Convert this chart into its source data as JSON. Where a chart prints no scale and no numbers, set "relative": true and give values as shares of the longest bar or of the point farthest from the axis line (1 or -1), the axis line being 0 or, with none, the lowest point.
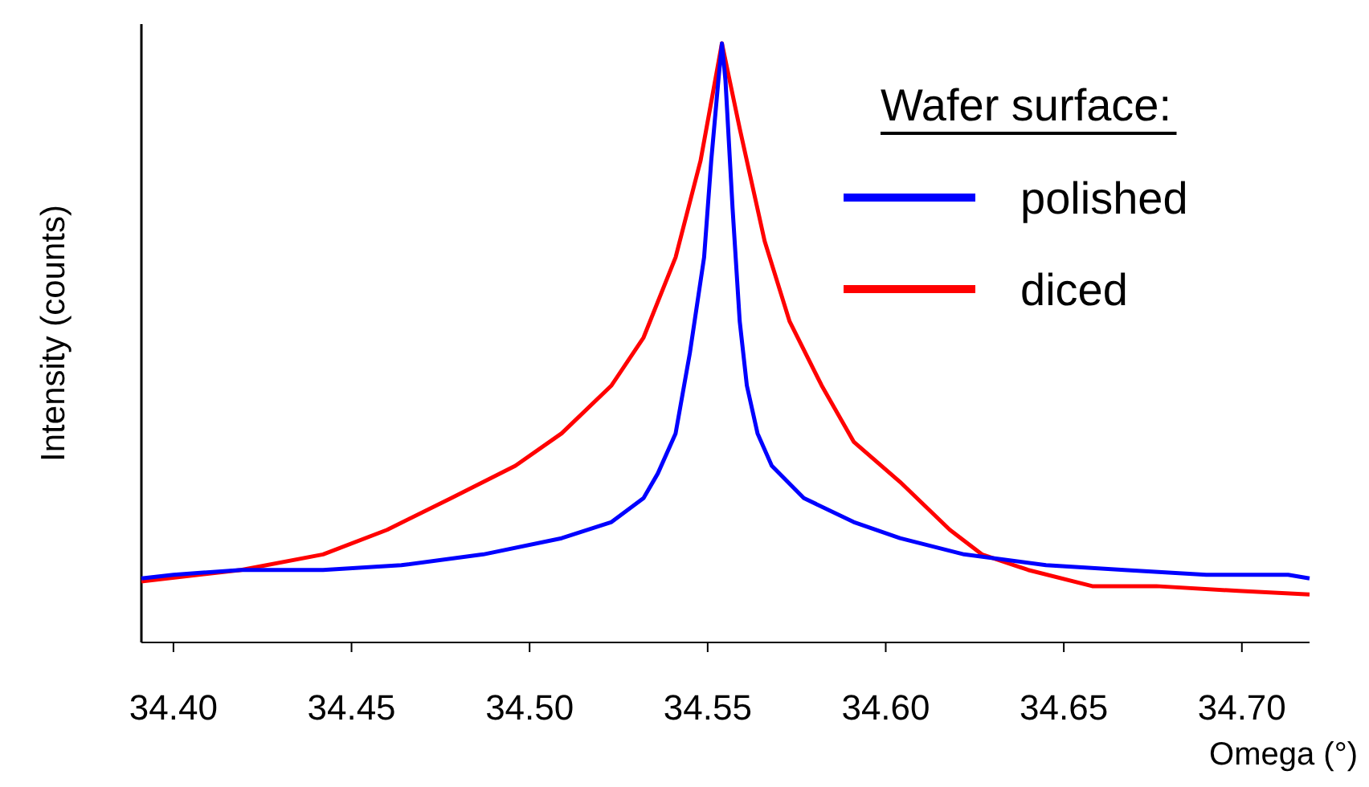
{
  "chart_data": {
    "type": "line",
    "relative": true,
    "xlabel": "Omega (°)",
    "ylabel": "Intensity (counts)",
    "legend_title": "Wafer surface:",
    "legend": "top right",
    "xlim": [
      34.391,
      34.719
    ],
    "xticks": [
      {
        "value": 34.4,
        "label": "34.40"
      },
      {
        "value": 34.45,
        "label": "34.45"
      },
      {
        "value": 34.5,
        "label": "34.50"
      },
      {
        "value": 34.55,
        "label": "34.55"
      },
      {
        "value": 34.6,
        "label": "34.60"
      },
      {
        "value": 34.65,
        "label": "34.65"
      },
      {
        "value": 34.7,
        "label": "34.70"
      }
    ],
    "series": [
      {
        "name": "polished",
        "color": "#0000ff",
        "x": [
          34.391,
          34.4,
          34.419,
          34.442,
          34.464,
          34.487,
          34.509,
          34.523,
          34.532,
          34.536,
          34.541,
          34.545,
          34.549,
          34.551,
          34.553,
          34.554,
          34.555,
          34.557,
          34.559,
          34.561,
          34.564,
          34.568,
          34.577,
          34.591,
          34.604,
          34.622,
          34.645,
          34.667,
          34.69,
          34.713,
          34.719
        ],
        "values": [
          0.107,
          0.113,
          0.121,
          0.121,
          0.129,
          0.147,
          0.174,
          0.201,
          0.241,
          0.282,
          0.349,
          0.483,
          0.643,
          0.804,
          0.938,
          1,
          0.938,
          0.724,
          0.536,
          0.429,
          0.349,
          0.295,
          0.241,
          0.201,
          0.174,
          0.147,
          0.129,
          0.121,
          0.113,
          0.113,
          0.107
        ]
      },
      {
        "name": "diced",
        "color": "#ff0000",
        "x": [
          34.391,
          34.419,
          34.442,
          34.46,
          34.478,
          34.496,
          34.509,
          34.523,
          34.532,
          34.541,
          34.548,
          34.554,
          34.559,
          34.566,
          34.573,
          34.582,
          34.591,
          34.604,
          34.618,
          34.627,
          34.64,
          34.658,
          34.676,
          34.699,
          34.719
        ],
        "values": [
          0.102,
          0.121,
          0.147,
          0.188,
          0.241,
          0.295,
          0.349,
          0.429,
          0.509,
          0.643,
          0.804,
          1,
          0.858,
          0.67,
          0.536,
          0.429,
          0.335,
          0.268,
          0.188,
          0.147,
          0.121,
          0.094,
          0.094,
          0.086,
          0.08
        ]
      }
    ]
  }
}
